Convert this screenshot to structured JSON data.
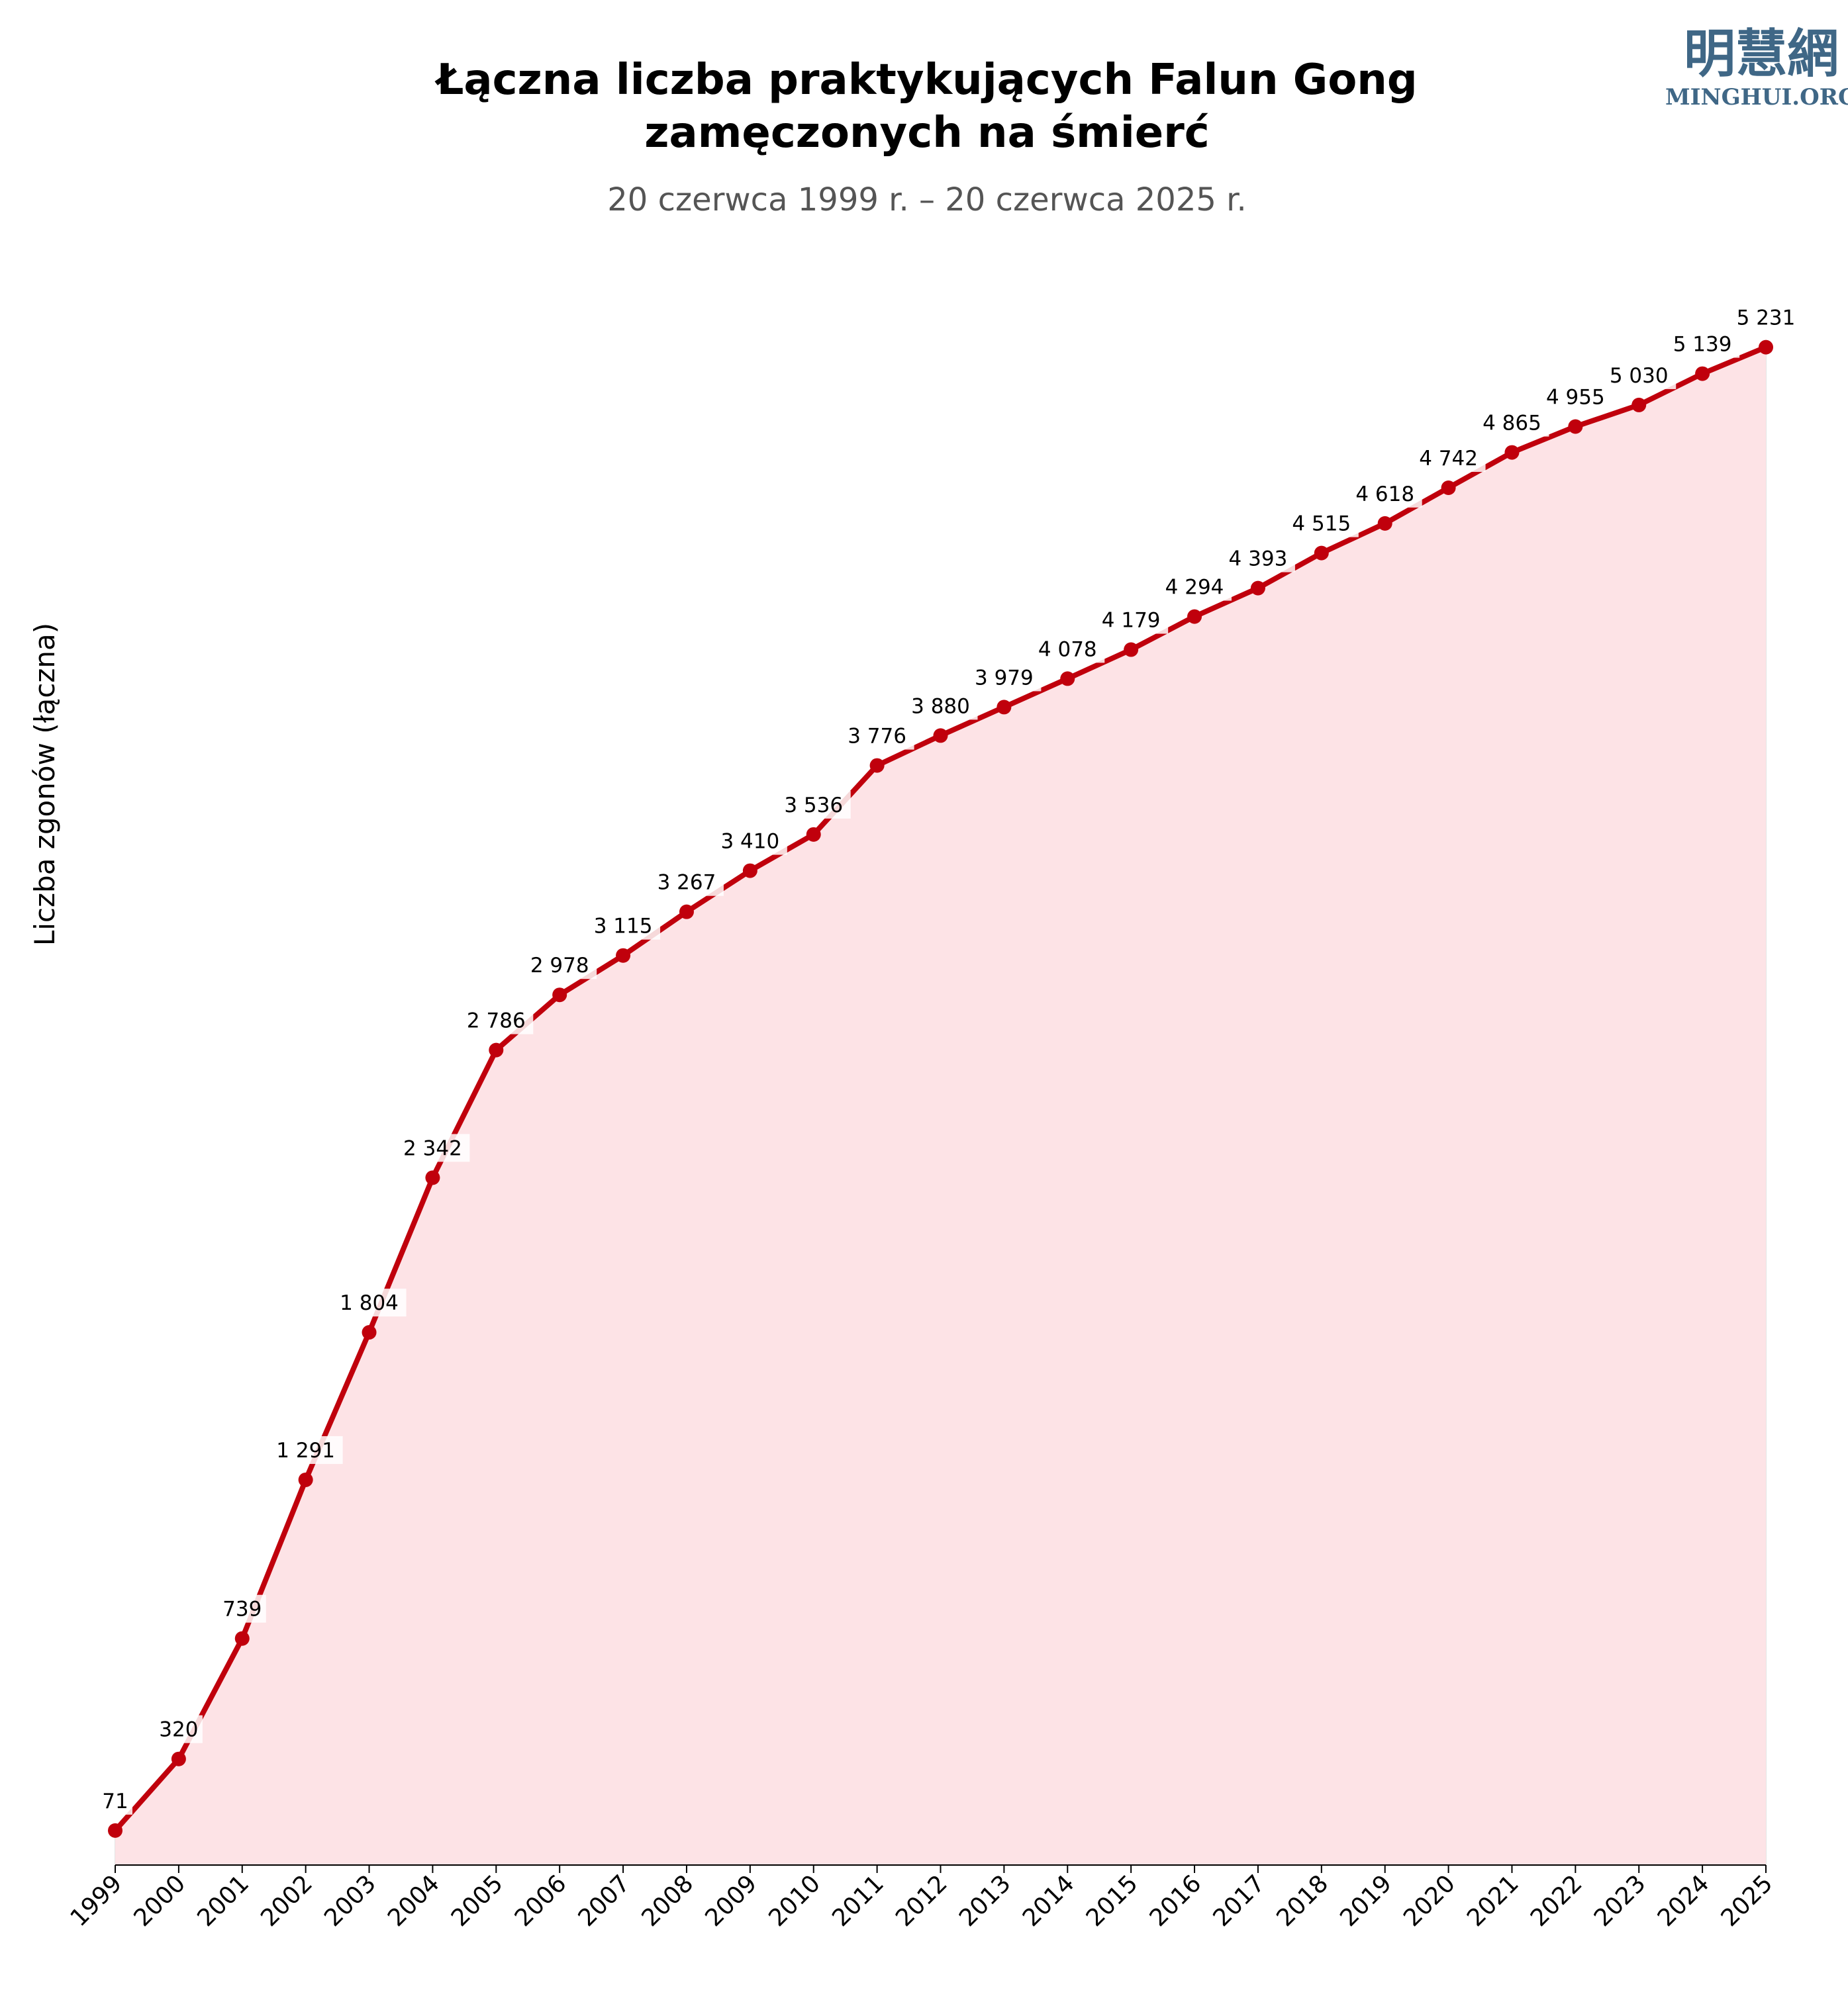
{
  "logo": {
    "chinese": "明慧網",
    "english": "MINGHUI.ORG"
  },
  "colors": {
    "line": "#c0000c",
    "fill": "#fde3e6",
    "grid": "#e4e4e4",
    "logo": "#3f6786"
  },
  "chart_data": {
    "type": "area",
    "title_line1": "Łączna liczba praktykujących Falun Gong",
    "title_line2": "zamęczonych na śmierć",
    "subtitle": "20 czerwca 1999 r. – 20 czerwca 2025 r.",
    "xlabel": "",
    "ylabel": "Liczba zgonów (łączna)",
    "grid": "vertical",
    "legend": "none",
    "x": [
      "1999",
      "2000",
      "2001",
      "2002",
      "2003",
      "2004",
      "2005",
      "2006",
      "2007",
      "2008",
      "2009",
      "2010",
      "2011",
      "2012",
      "2013",
      "2014",
      "2015",
      "2016",
      "2017",
      "2018",
      "2019",
      "2020",
      "2021",
      "2022",
      "2023",
      "2024",
      "2025"
    ],
    "values": [
      71,
      320,
      739,
      1291,
      1804,
      2342,
      2786,
      2978,
      3115,
      3267,
      3410,
      3536,
      3776,
      3880,
      3979,
      4078,
      4179,
      4294,
      4393,
      4515,
      4618,
      4742,
      4865,
      4955,
      5030,
      5139,
      5231
    ],
    "data_labels": [
      "71",
      "320",
      "739",
      "1 291",
      "1 804",
      "2 342",
      "2 786",
      "2 978",
      "3 115",
      "3 267",
      "3 410",
      "3 536",
      "3 776",
      "3 880",
      "3 979",
      "4 078",
      "4 179",
      "4 294",
      "4 393",
      "4 515",
      "4 618",
      "4 742",
      "4 865",
      "4 955",
      "5 030",
      "5 139",
      "5 231"
    ]
  }
}
